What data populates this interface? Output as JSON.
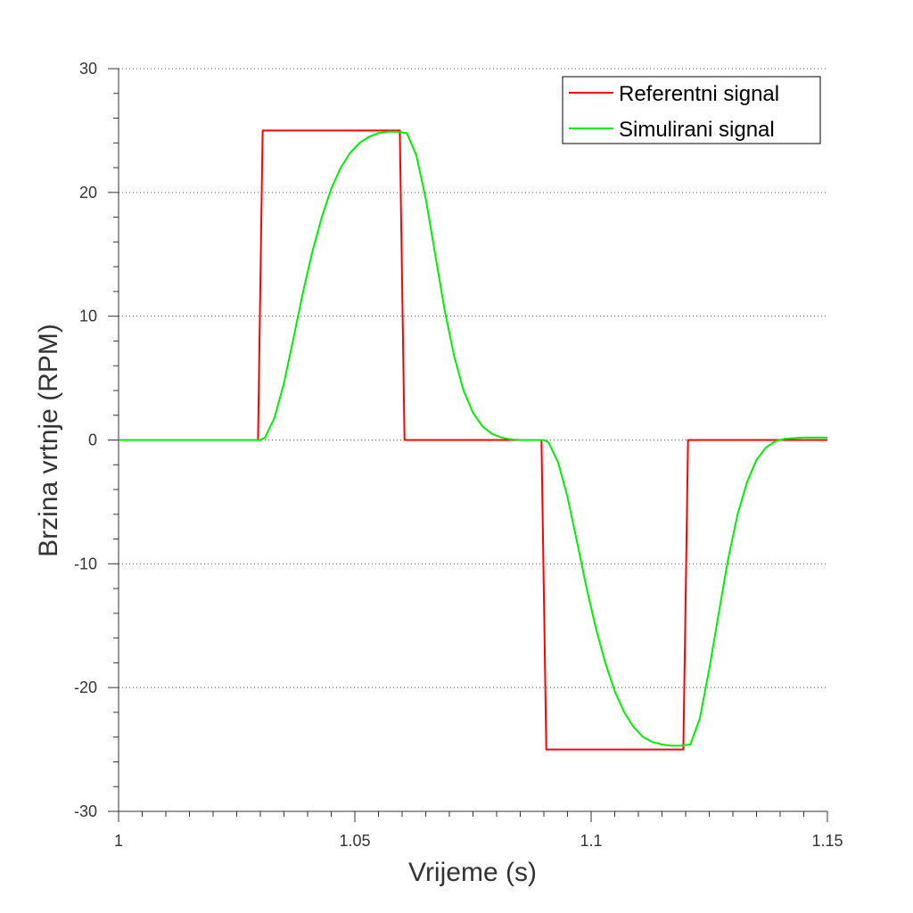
{
  "chart_data": {
    "type": "line",
    "title": "",
    "xlabel": "Vrijeme (s)",
    "ylabel": "Brzina vrtnje (RPM)",
    "xlim": [
      1,
      1.15
    ],
    "ylim": [
      -30,
      30
    ],
    "x_ticks": [
      1,
      1.05,
      1.1,
      1.15
    ],
    "x_tick_labels": [
      "1",
      "1.05",
      "1.1",
      "1.15"
    ],
    "y_ticks": [
      30,
      20,
      10,
      0,
      -10,
      -20,
      -30
    ],
    "y_tick_labels": [
      "30",
      "20",
      "10",
      "0",
      "-10",
      "-20",
      "-30"
    ],
    "grid": "horizontal dotted",
    "legend_position": "top-right",
    "series": [
      {
        "name": "Referentni signal",
        "color": "#ff0000",
        "x": [
          1.0,
          1.0295,
          1.0305,
          1.0595,
          1.0605,
          1.0895,
          1.0905,
          1.1195,
          1.1205,
          1.15
        ],
        "y": [
          0,
          0,
          25,
          25,
          0,
          0,
          -25,
          -25,
          0,
          0
        ]
      },
      {
        "name": "Simulirani signal",
        "color": "#00ee00",
        "x": [
          1.0,
          1.03,
          1.031,
          1.033,
          1.035,
          1.037,
          1.039,
          1.041,
          1.043,
          1.045,
          1.047,
          1.049,
          1.051,
          1.053,
          1.055,
          1.057,
          1.059,
          1.061,
          1.063,
          1.065,
          1.067,
          1.069,
          1.071,
          1.073,
          1.075,
          1.077,
          1.079,
          1.081,
          1.083,
          1.085,
          1.088,
          1.09,
          1.091,
          1.093,
          1.095,
          1.097,
          1.099,
          1.101,
          1.103,
          1.105,
          1.107,
          1.109,
          1.111,
          1.113,
          1.115,
          1.117,
          1.119,
          1.121,
          1.123,
          1.125,
          1.127,
          1.129,
          1.131,
          1.133,
          1.135,
          1.137,
          1.139,
          1.141,
          1.143,
          1.145,
          1.147,
          1.15
        ],
        "y": [
          0,
          0,
          0.2,
          1.8,
          4.6,
          8.2,
          11.9,
          15.2,
          18.0,
          20.3,
          22.0,
          23.2,
          24.0,
          24.5,
          24.8,
          24.9,
          24.9,
          24.8,
          23.0,
          19.5,
          15.0,
          10.5,
          6.8,
          4.0,
          2.2,
          1.1,
          0.5,
          0.2,
          0.05,
          0,
          0,
          0,
          -0.2,
          -1.8,
          -4.6,
          -8.2,
          -11.9,
          -15.2,
          -18.0,
          -20.3,
          -22.0,
          -23.2,
          -24.0,
          -24.4,
          -24.6,
          -24.7,
          -24.7,
          -24.6,
          -22.5,
          -18.5,
          -14.0,
          -9.6,
          -6.0,
          -3.4,
          -1.6,
          -0.6,
          -0.1,
          0.1,
          0.15,
          0.2,
          0.2,
          0.2
        ]
      }
    ]
  }
}
